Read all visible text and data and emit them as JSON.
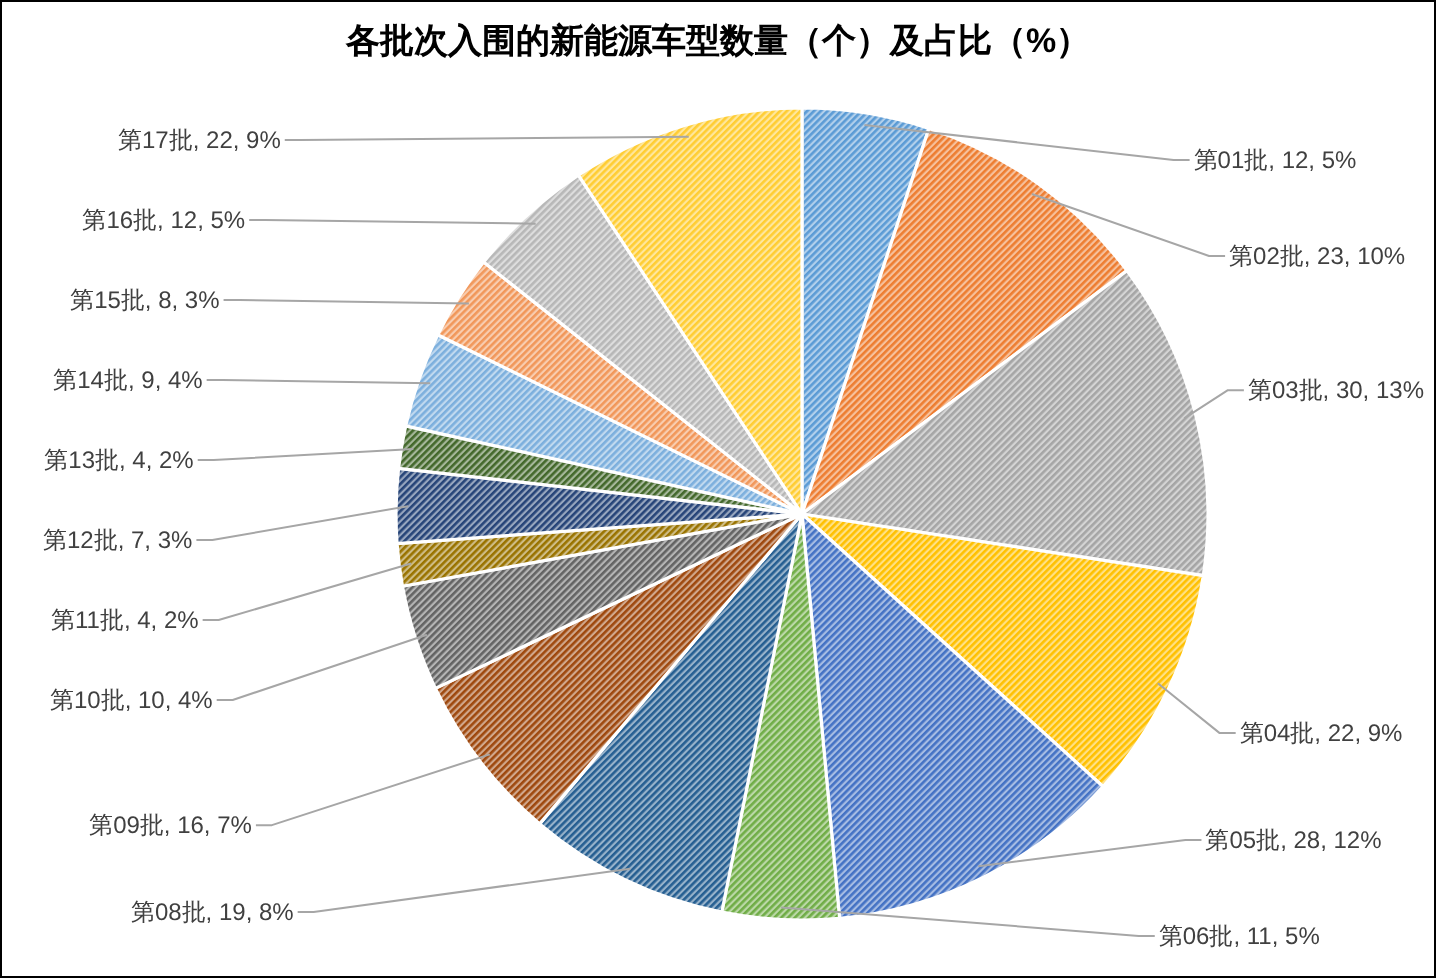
{
  "chart_data": {
    "type": "pie",
    "title": "各批次入围的新能源车型数量（个）及占比（%）",
    "categories": [
      "第01批",
      "第02批",
      "第03批",
      "第04批",
      "第05批",
      "第06批",
      "第08批",
      "第09批",
      "第10批",
      "第11批",
      "第12批",
      "第13批",
      "第14批",
      "第15批",
      "第16批",
      "第17批"
    ],
    "values": [
      12,
      23,
      30,
      22,
      28,
      11,
      19,
      16,
      10,
      4,
      7,
      4,
      9,
      8,
      12,
      22
    ],
    "value_labels": [
      "12, 5%",
      "23, 10%",
      "30, 13%",
      "22, 9%",
      "28, 12%",
      "11, 5%",
      "19, 8%",
      "16, 7%",
      "10, 4%",
      "4, 2%",
      "7, 3%",
      "4, 2%",
      "9, 4%",
      "8, 3%",
      "12, 5%",
      "22, 9%"
    ],
    "colors": [
      "#5b9bd5",
      "#ed7d31",
      "#a5a5a5",
      "#ffc000",
      "#4472c4",
      "#70ad47",
      "#255e91",
      "#9e480e",
      "#636363",
      "#997300",
      "#264478",
      "#43682b",
      "#7cafdd",
      "#f1975a",
      "#b7b7b7",
      "#ffcd33"
    ]
  }
}
